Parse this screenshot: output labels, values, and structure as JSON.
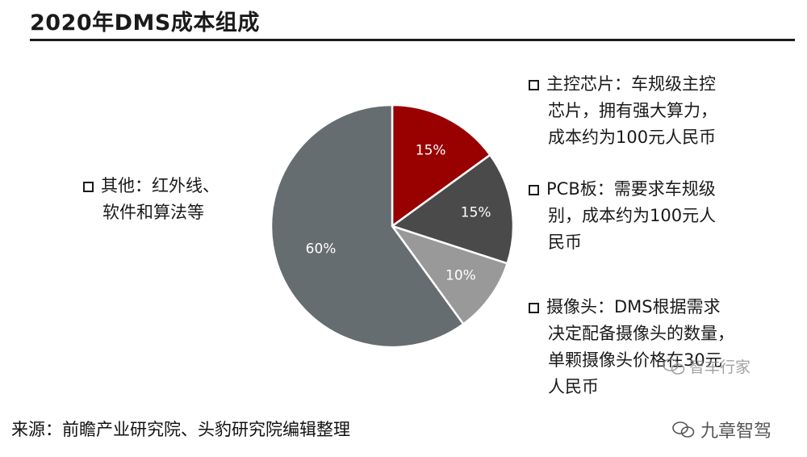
{
  "title": "2020年DMS成本组成",
  "callouts": {
    "chip": {
      "head": "主控芯片：车规级主控",
      "body": "芯片，拥有强大算力，\n成本约为100元人民币"
    },
    "pcb": {
      "head": "PCB板：需要求车规级",
      "body": "别，成本约为100元人\n民币"
    },
    "camera": {
      "head": "摄像头：DMS根据需求",
      "body": "决定配备摄像头的数量，\n单颗摄像头价格在30元\n人民币"
    },
    "other": {
      "head": "其他：红外线、",
      "body": "软件和算法等"
    }
  },
  "source": "来源：前瞻产业研究院、头豹研究院编辑整理",
  "watermark": "九章智驾",
  "watermark_mid": "智车行家",
  "chart_data": {
    "type": "pie",
    "title": "2020年DMS成本组成",
    "categories": [
      "主控芯片",
      "PCB板",
      "摄像头",
      "其他"
    ],
    "values": [
      15,
      15,
      10,
      60
    ],
    "labels": [
      "15%",
      "15%",
      "10%",
      "60%"
    ],
    "colors": [
      "#990000",
      "#4a4a4a",
      "#999999",
      "#666d70"
    ],
    "label_colors": [
      "#ffffff",
      "#ffffff",
      "#ffffff",
      "#ffffff"
    ],
    "start": "top",
    "direction": "clockwise"
  }
}
